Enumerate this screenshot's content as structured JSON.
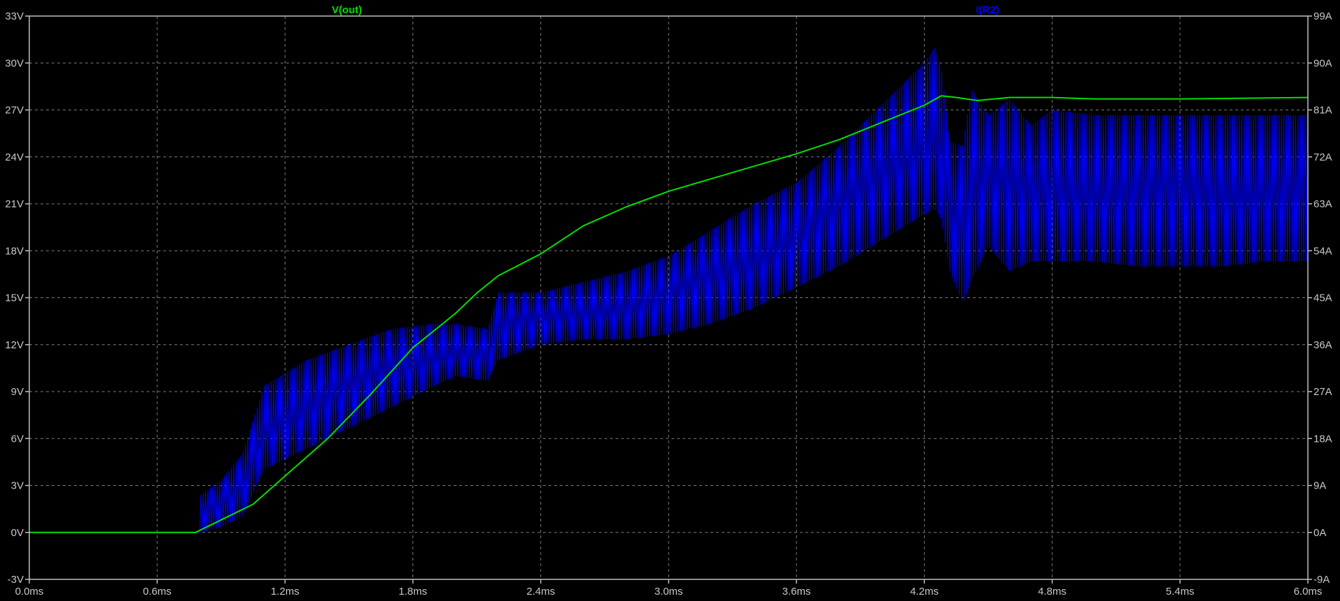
{
  "chart_data": {
    "type": "line",
    "x": {
      "label": "",
      "unit": "ms",
      "range": [
        0.0,
        6.0
      ],
      "tick_labels": [
        "0.0ms",
        "0.6ms",
        "1.2ms",
        "1.8ms",
        "2.4ms",
        "3.0ms",
        "3.6ms",
        "4.2ms",
        "4.8ms",
        "5.4ms",
        "6.0ms"
      ]
    },
    "y_left": {
      "label": "",
      "unit": "V",
      "range": [
        -3,
        33
      ],
      "tick_labels": [
        "-3V",
        "0V",
        "3V",
        "6V",
        "9V",
        "12V",
        "15V",
        "18V",
        "21V",
        "24V",
        "27V",
        "30V",
        "33V"
      ]
    },
    "y_right": {
      "label": "",
      "unit": "A",
      "range": [
        -9,
        99
      ],
      "tick_labels": [
        "-9A",
        "0A",
        "9A",
        "18A",
        "27A",
        "36A",
        "45A",
        "54A",
        "63A",
        "72A",
        "81A",
        "90A",
        "99A"
      ]
    },
    "grid": true,
    "series": [
      {
        "name": "V(out)",
        "axis": "left",
        "color": "#00e000",
        "x": [
          0.0,
          0.78,
          0.9,
          1.05,
          1.2,
          1.4,
          1.6,
          1.8,
          2.0,
          2.1,
          2.2,
          2.4,
          2.6,
          2.8,
          3.0,
          3.2,
          3.4,
          3.6,
          3.8,
          4.0,
          4.2,
          4.28,
          4.35,
          4.45,
          4.6,
          4.8,
          5.0,
          5.4,
          6.0
        ],
        "y": [
          0.0,
          0.0,
          0.8,
          1.8,
          3.6,
          6.0,
          8.8,
          11.8,
          14.0,
          15.3,
          16.4,
          17.8,
          19.6,
          20.8,
          21.8,
          22.6,
          23.4,
          24.2,
          25.1,
          26.2,
          27.3,
          27.9,
          27.8,
          27.6,
          27.8,
          27.8,
          27.7,
          27.7,
          27.8
        ]
      },
      {
        "name": "I(R2)",
        "axis": "right",
        "color": "#0000ff",
        "x": [
          0.0,
          0.72,
          0.8,
          0.9,
          1.0,
          1.1,
          1.3,
          1.5,
          1.7,
          1.9,
          2.0,
          2.15,
          2.2,
          2.4,
          2.6,
          2.8,
          3.0,
          3.2,
          3.4,
          3.6,
          3.8,
          4.0,
          4.2,
          4.25,
          4.28,
          4.32,
          4.38,
          4.42,
          4.5,
          4.6,
          4.7,
          4.8,
          5.0,
          5.2,
          5.4,
          5.6,
          5.8,
          6.0
        ],
        "y": [
          0.0,
          0.0,
          4.0,
          6.0,
          10.0,
          20.0,
          25.0,
          29.0,
          32.0,
          33.0,
          35.0,
          34.0,
          40.0,
          39.0,
          41.0,
          42.0,
          44.0,
          48.0,
          52.0,
          56.0,
          60.0,
          64.0,
          70.0,
          72.0,
          70.0,
          64.0,
          56.0,
          58.0,
          63.0,
          62.0,
          61.0,
          63.0,
          62.0,
          64.0,
          63.0,
          63.0,
          64.0,
          63.0
        ],
        "env_low": [
          0.0,
          0.0,
          0.0,
          1.0,
          3.0,
          12.0,
          16.0,
          20.0,
          24.0,
          28.0,
          30.0,
          29.0,
          33.0,
          36.0,
          37.0,
          37.0,
          38.0,
          40.0,
          43.0,
          47.0,
          51.0,
          56.0,
          61.0,
          62.0,
          60.0,
          50.0,
          44.0,
          48.0,
          55.0,
          50.0,
          52.0,
          52.0,
          52.0,
          51.0,
          51.0,
          51.0,
          52.0,
          52.0
        ],
        "env_high": [
          0.0,
          0.0,
          7.0,
          10.0,
          15.0,
          28.0,
          33.0,
          36.0,
          39.0,
          40.0,
          40.0,
          39.0,
          46.0,
          46.0,
          48.0,
          50.0,
          53.0,
          58.0,
          63.0,
          67.0,
          74.0,
          82.0,
          90.0,
          93.0,
          89.0,
          75.0,
          74.0,
          85.0,
          80.0,
          83.0,
          78.0,
          81.0,
          80.0,
          80.0,
          80.0,
          80.0,
          80.0,
          80.0
        ]
      }
    ]
  }
}
